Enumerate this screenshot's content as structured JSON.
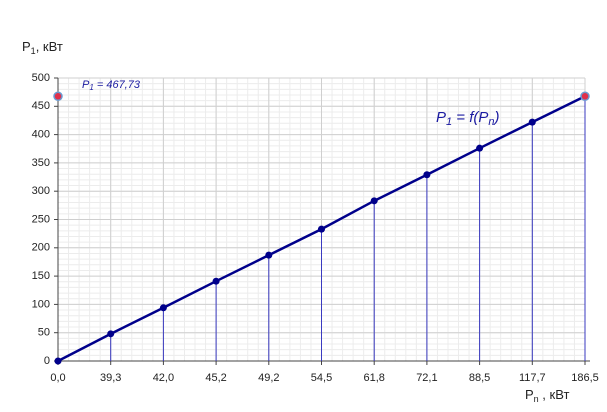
{
  "chart_data": {
    "type": "line",
    "y_label": [
      "P",
      "1",
      ", кВт"
    ],
    "x_label": [
      "P",
      "n",
      " , кВт"
    ],
    "categories": [
      "0,0",
      "39,3",
      "42,0",
      "45,2",
      "49,2",
      "54,5",
      "61,8",
      "72,1",
      "88,5",
      "117,7",
      "186,5"
    ],
    "values": [
      0,
      48,
      94,
      141,
      187,
      233,
      283,
      329,
      376,
      422,
      467.73
    ],
    "color": "#00008b",
    "ylim": [
      0,
      500
    ],
    "yticks": [
      0,
      50,
      100,
      150,
      200,
      250,
      300,
      350,
      400,
      450,
      500
    ],
    "grid": true,
    "highlight": {
      "value": 467.73,
      "color": "#e0304a",
      "label": [
        "P",
        "1",
        " = 467,73"
      ]
    },
    "formula": [
      "P",
      "1",
      " = f(P",
      "n",
      ")"
    ]
  }
}
